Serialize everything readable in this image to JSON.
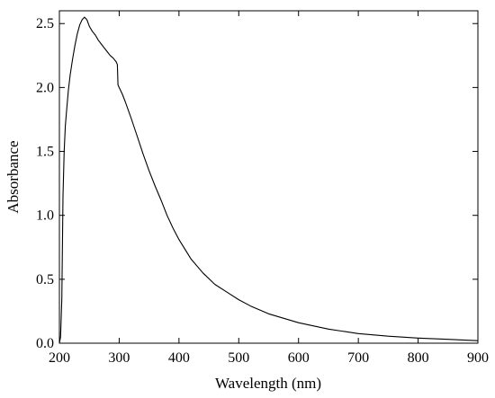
{
  "chart_data": {
    "type": "line",
    "xlabel": "Wavelength (nm)",
    "ylabel": "Absorbance",
    "xlim": [
      200,
      900
    ],
    "ylim": [
      0.0,
      2.6
    ],
    "xticks": [
      200,
      300,
      400,
      500,
      600,
      700,
      800,
      900
    ],
    "xtick_labels": [
      "200",
      "300",
      "400",
      "500",
      "600",
      "700",
      "800",
      "900"
    ],
    "yticks": [
      0.0,
      0.5,
      1.0,
      1.5,
      2.0,
      2.5
    ],
    "ytick_labels": [
      "0.0",
      "0.5",
      "1.0",
      "1.5",
      "2.0",
      "2.5"
    ],
    "grid": false,
    "legend": "none",
    "series": [
      {
        "color": "#000000",
        "x": [
          200,
          202,
          204,
          206,
          208,
          210,
          212,
          215,
          218,
          222,
          226,
          230,
          234,
          238,
          242,
          246,
          250,
          255,
          260,
          265,
          270,
          275,
          280,
          285,
          290,
          295,
          297,
          298,
          300,
          305,
          310,
          320,
          330,
          340,
          350,
          360,
          370,
          380,
          390,
          400,
          420,
          440,
          460,
          480,
          500,
          520,
          550,
          600,
          650,
          700,
          750,
          800,
          850,
          900
        ],
        "y": [
          0.0,
          0.05,
          0.35,
          1.15,
          1.5,
          1.7,
          1.82,
          1.98,
          2.1,
          2.22,
          2.33,
          2.42,
          2.49,
          2.53,
          2.55,
          2.53,
          2.48,
          2.44,
          2.41,
          2.37,
          2.34,
          2.31,
          2.28,
          2.25,
          2.23,
          2.2,
          2.18,
          2.02,
          2.0,
          1.95,
          1.89,
          1.76,
          1.62,
          1.48,
          1.35,
          1.23,
          1.12,
          1.0,
          0.9,
          0.81,
          0.66,
          0.55,
          0.46,
          0.4,
          0.34,
          0.29,
          0.23,
          0.16,
          0.11,
          0.075,
          0.055,
          0.04,
          0.03,
          0.02
        ]
      }
    ]
  }
}
